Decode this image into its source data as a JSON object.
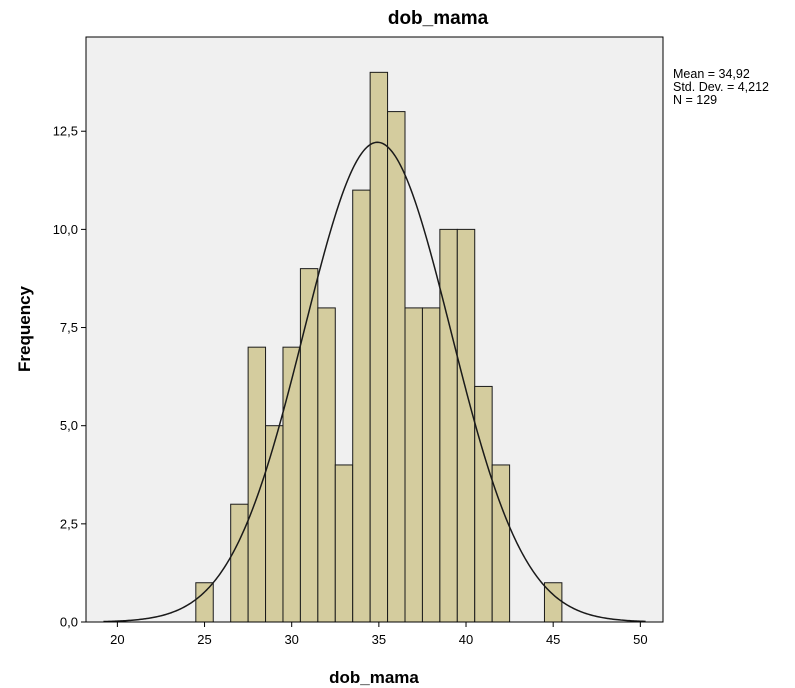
{
  "chart_data": {
    "type": "bar",
    "subtype": "histogram",
    "title": "dob_mama",
    "xlabel": "dob_mama",
    "ylabel": "Frequency",
    "xlim": [
      18.2,
      51.3
    ],
    "ylim": [
      0,
      14.9
    ],
    "x_ticks": [
      20,
      25,
      30,
      35,
      40,
      45,
      50
    ],
    "y_ticks": [
      0,
      2.5,
      5,
      7.5,
      10,
      12.5
    ],
    "y_tick_labels": [
      "0,0",
      "2,5",
      "5,0",
      "7,5",
      "10,0",
      "12,5"
    ],
    "bins": [
      {
        "start": 24.5,
        "end": 25.5,
        "count": 1
      },
      {
        "start": 26.5,
        "end": 27.5,
        "count": 3
      },
      {
        "start": 27.5,
        "end": 28.5,
        "count": 7
      },
      {
        "start": 28.5,
        "end": 29.5,
        "count": 5
      },
      {
        "start": 29.5,
        "end": 30.5,
        "count": 7
      },
      {
        "start": 30.5,
        "end": 31.5,
        "count": 9
      },
      {
        "start": 31.5,
        "end": 32.5,
        "count": 8
      },
      {
        "start": 32.5,
        "end": 33.5,
        "count": 4
      },
      {
        "start": 33.5,
        "end": 34.5,
        "count": 11
      },
      {
        "start": 34.5,
        "end": 35.5,
        "count": 14
      },
      {
        "start": 35.5,
        "end": 36.5,
        "count": 13
      },
      {
        "start": 36.5,
        "end": 37.5,
        "count": 8
      },
      {
        "start": 37.5,
        "end": 38.5,
        "count": 8
      },
      {
        "start": 38.5,
        "end": 39.5,
        "count": 10
      },
      {
        "start": 39.5,
        "end": 40.5,
        "count": 10
      },
      {
        "start": 40.5,
        "end": 41.5,
        "count": 6
      },
      {
        "start": 41.5,
        "end": 42.5,
        "count": 4
      },
      {
        "start": 44.5,
        "end": 45.5,
        "count": 1
      }
    ],
    "normal_curve": {
      "mean": 34.92,
      "std_dev": 4.212,
      "n": 129,
      "bin_width": 1
    },
    "stats_lines": [
      "Mean = 34,92",
      "Std. Dev. = 4,212",
      "N = 129"
    ],
    "grid": false,
    "colors": {
      "plot_background": "#f0f0f0",
      "bar_fill": "#d4cc9e",
      "bar_stroke": "#1a1a1a",
      "curve": "#1a1a1a"
    }
  }
}
